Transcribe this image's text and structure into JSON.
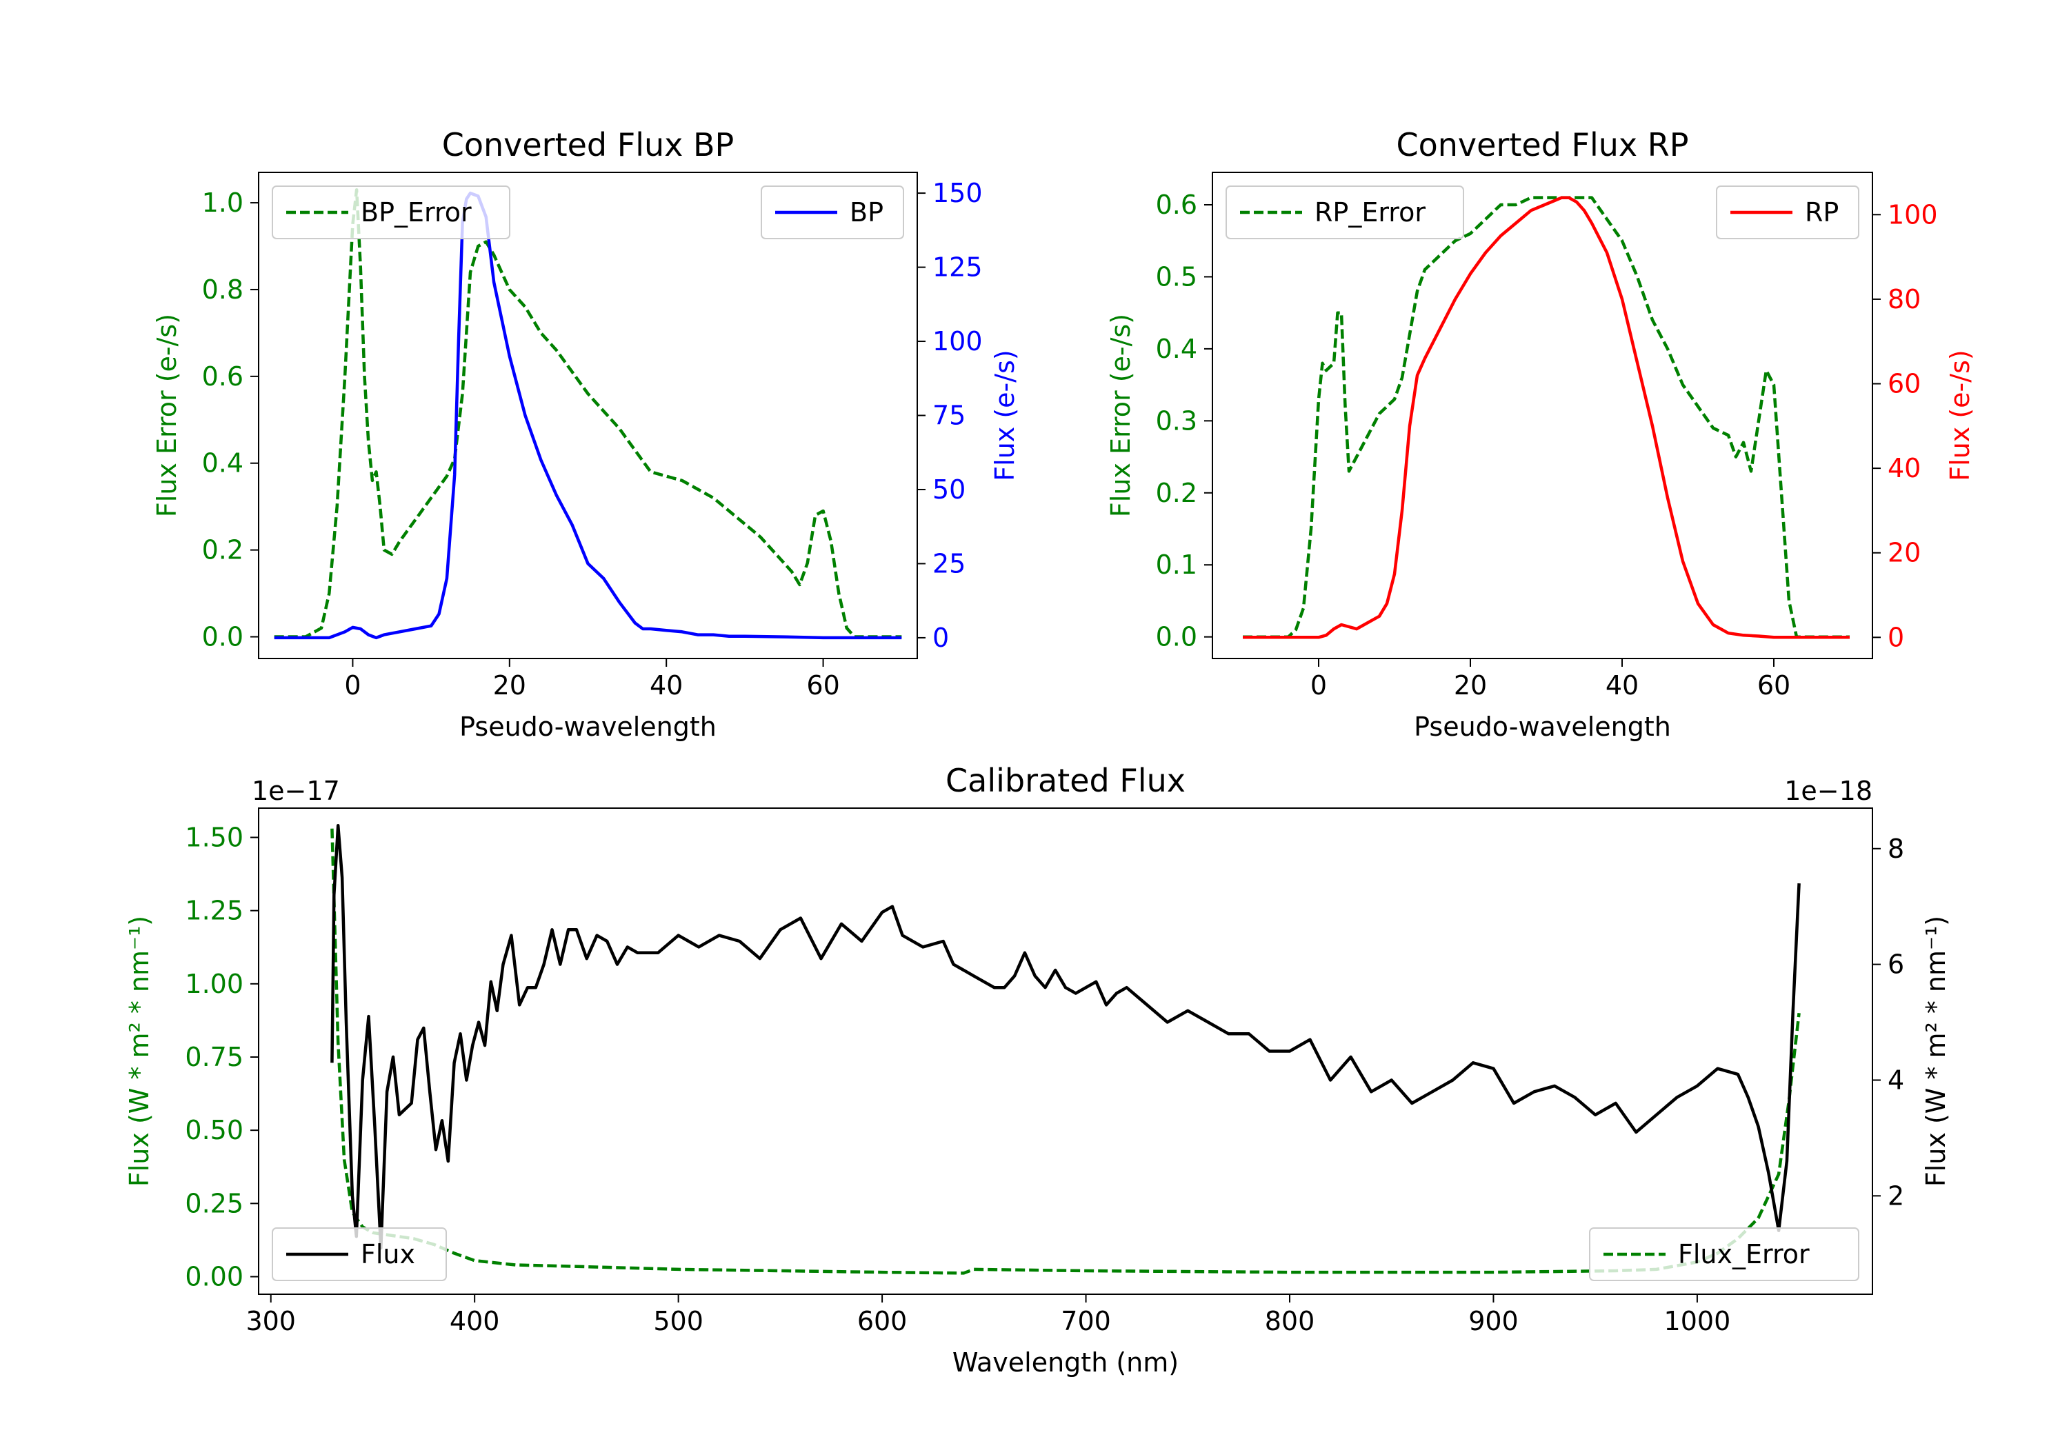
{
  "chart_data": [
    {
      "id": "bp",
      "type": "line",
      "title": "Converted Flux BP",
      "xlabel": "Pseudo-wavelength",
      "ylabel_left": "Flux Error (e-/s)",
      "ylabel_right": "Flux (e-/s)",
      "xlim": [
        -12,
        72
      ],
      "ylim_left": [
        -0.05,
        1.07
      ],
      "ylim_right": [
        -7,
        157
      ],
      "xticks": [
        0,
        20,
        40,
        60
      ],
      "yticks_left": [
        "0.0",
        "0.2",
        "0.4",
        "0.6",
        "0.8",
        "1.0"
      ],
      "yticks_left_values": [
        0.0,
        0.2,
        0.4,
        0.6,
        0.8,
        1.0
      ],
      "yticks_right": [
        "0",
        "25",
        "50",
        "75",
        "100",
        "125",
        "150"
      ],
      "yticks_right_values": [
        0,
        25,
        50,
        75,
        100,
        125,
        150
      ],
      "left_color": "#008000",
      "right_color": "#0000ff",
      "series": [
        {
          "name": "BP_Error",
          "axis": "left",
          "style": "dashed",
          "color": "#008000",
          "x": [
            -10,
            -6,
            -4,
            -3,
            -2,
            -1,
            0,
            0.5,
            1,
            1.5,
            2,
            2.5,
            3,
            3.5,
            4,
            5,
            6,
            8,
            10,
            12,
            13,
            14,
            15,
            16,
            17,
            18,
            19,
            20,
            22,
            24,
            26,
            28,
            30,
            32,
            34,
            36,
            38,
            40,
            42,
            44,
            46,
            48,
            50,
            52,
            54,
            56,
            57,
            58,
            59,
            60,
            61,
            62,
            63,
            64,
            65,
            68,
            70
          ],
          "y": [
            0,
            0,
            0.02,
            0.1,
            0.3,
            0.6,
            0.95,
            1.03,
            0.85,
            0.6,
            0.45,
            0.36,
            0.38,
            0.3,
            0.2,
            0.19,
            0.22,
            0.27,
            0.32,
            0.37,
            0.41,
            0.56,
            0.84,
            0.9,
            0.91,
            0.88,
            0.84,
            0.8,
            0.76,
            0.7,
            0.66,
            0.61,
            0.56,
            0.52,
            0.48,
            0.43,
            0.38,
            0.37,
            0.36,
            0.34,
            0.32,
            0.29,
            0.26,
            0.23,
            0.19,
            0.15,
            0.12,
            0.17,
            0.28,
            0.29,
            0.22,
            0.1,
            0.02,
            0,
            0,
            0,
            0
          ]
        },
        {
          "name": "BP",
          "axis": "right",
          "style": "solid",
          "color": "#0000ff",
          "x": [
            -10,
            -6,
            -3,
            -1,
            0,
            1,
            2,
            3,
            4,
            6,
            8,
            10,
            11,
            12,
            13,
            13.5,
            14,
            14.5,
            15,
            16,
            17,
            18,
            20,
            22,
            24,
            26,
            28,
            30,
            32,
            34,
            36,
            37,
            38,
            40,
            42,
            44,
            46,
            48,
            50,
            55,
            60,
            65,
            70
          ],
          "y": [
            0,
            0,
            0,
            2,
            3.5,
            3,
            1,
            0,
            1,
            2,
            3,
            4,
            8,
            20,
            55,
            100,
            140,
            148,
            150,
            149,
            142,
            120,
            95,
            75,
            60,
            48,
            38,
            25,
            20,
            12,
            5,
            3,
            3,
            2.5,
            2,
            1,
            1,
            0.5,
            0.5,
            0.3,
            0,
            0,
            0
          ]
        }
      ],
      "legend": [
        {
          "label": "BP_Error",
          "style": "dashed",
          "color": "#008000",
          "position": "upper-left"
        },
        {
          "label": "BP",
          "style": "solid",
          "color": "#0000ff",
          "position": "upper-right"
        }
      ]
    },
    {
      "id": "rp",
      "type": "line",
      "title": "Converted Flux RP",
      "xlabel": "Pseudo-wavelength",
      "ylabel_left": "Flux Error (e-/s)",
      "ylabel_right": "Flux (e-/s)",
      "xlim": [
        -14,
        73
      ],
      "ylim_left": [
        -0.03,
        0.645
      ],
      "ylim_right": [
        -5,
        110
      ],
      "xticks": [
        0,
        20,
        40,
        60
      ],
      "yticks_left": [
        "0.0",
        "0.1",
        "0.2",
        "0.3",
        "0.4",
        "0.5",
        "0.6"
      ],
      "yticks_left_values": [
        0.0,
        0.1,
        0.2,
        0.3,
        0.4,
        0.5,
        0.6
      ],
      "yticks_right": [
        "0",
        "20",
        "40",
        "60",
        "80",
        "100"
      ],
      "yticks_right_values": [
        0,
        20,
        40,
        60,
        80,
        100
      ],
      "left_color": "#008000",
      "right_color": "#ff0000",
      "series": [
        {
          "name": "RP_Error",
          "axis": "left",
          "style": "dashed",
          "color": "#008000",
          "x": [
            -10,
            -6,
            -4,
            -3,
            -2,
            -1,
            0,
            0.5,
            1,
            2,
            2.5,
            3,
            3.5,
            4,
            5,
            6,
            8,
            10,
            11,
            12,
            13,
            14,
            16,
            18,
            20,
            22,
            24,
            26,
            28,
            30,
            32,
            34,
            36,
            38,
            40,
            42,
            44,
            46,
            48,
            50,
            52,
            54,
            55,
            56,
            57,
            58,
            59,
            60,
            61,
            62,
            63,
            65,
            70
          ],
          "y": [
            0,
            0,
            0,
            0.01,
            0.04,
            0.15,
            0.33,
            0.38,
            0.37,
            0.38,
            0.45,
            0.45,
            0.32,
            0.23,
            0.25,
            0.27,
            0.31,
            0.33,
            0.36,
            0.42,
            0.48,
            0.51,
            0.53,
            0.55,
            0.56,
            0.58,
            0.6,
            0.6,
            0.61,
            0.61,
            0.61,
            0.61,
            0.61,
            0.58,
            0.55,
            0.5,
            0.44,
            0.4,
            0.35,
            0.32,
            0.29,
            0.28,
            0.25,
            0.27,
            0.23,
            0.3,
            0.37,
            0.35,
            0.2,
            0.05,
            0,
            0,
            0
          ]
        },
        {
          "name": "RP",
          "axis": "right",
          "style": "solid",
          "color": "#ff0000",
          "x": [
            -10,
            -6,
            -4,
            -2,
            0,
            1,
            2,
            3,
            4,
            5,
            6,
            8,
            9,
            10,
            11,
            12,
            13,
            14,
            16,
            18,
            20,
            22,
            24,
            26,
            28,
            30,
            32,
            33,
            34,
            35,
            36,
            38,
            40,
            42,
            44,
            46,
            48,
            50,
            52,
            54,
            56,
            58,
            60,
            65,
            70
          ],
          "y": [
            0,
            0,
            0,
            0,
            0,
            0.5,
            2,
            3,
            2.5,
            2,
            3,
            5,
            8,
            15,
            30,
            50,
            62,
            66,
            73,
            80,
            86,
            91,
            95,
            98,
            101,
            102.5,
            104,
            104,
            103,
            101,
            98,
            91,
            80,
            65,
            50,
            33,
            18,
            8,
            3,
            1,
            0.5,
            0.3,
            0,
            0,
            0
          ]
        }
      ],
      "legend": [
        {
          "label": "RP_Error",
          "style": "dashed",
          "color": "#008000",
          "position": "upper-left"
        },
        {
          "label": "RP",
          "style": "solid",
          "color": "#ff0000",
          "position": "upper-right"
        }
      ]
    },
    {
      "id": "cal",
      "type": "line",
      "title": "Calibrated Flux",
      "xlabel": "Wavelength (nm)",
      "ylabel_left": "Flux (W * m² * nm⁻¹)",
      "ylabel_right": "Flux (W * m² * nm⁻¹)",
      "offset_left": "1e−17",
      "offset_right": "1e−18",
      "xlim": [
        294,
        1086
      ],
      "ylim_left": [
        -0.06,
        1.6
      ],
      "ylim_right": [
        0.3,
        8.7
      ],
      "xticks": [
        300,
        400,
        500,
        600,
        700,
        800,
        900,
        1000
      ],
      "yticks_left": [
        "0.00",
        "0.25",
        "0.50",
        "0.75",
        "1.00",
        "1.25",
        "1.50"
      ],
      "yticks_left_values": [
        0.0,
        0.25,
        0.5,
        0.75,
        1.0,
        1.25,
        1.5
      ],
      "yticks_right": [
        "2",
        "4",
        "6",
        "8"
      ],
      "yticks_right_values": [
        2,
        4,
        6,
        8
      ],
      "left_color": "#008000",
      "right_color": "#000000",
      "series": [
        {
          "name": "Flux_Error",
          "axis": "left",
          "style": "dashed",
          "color": "#008000",
          "x": [
            330,
            333,
            336,
            340,
            345,
            350,
            360,
            370,
            380,
            390,
            400,
            420,
            450,
            500,
            550,
            600,
            640,
            645,
            700,
            800,
            900,
            960,
            980,
            1000,
            1010,
            1020,
            1030,
            1040,
            1045,
            1050
          ],
          "y": [
            1.53,
            0.8,
            0.4,
            0.22,
            0.17,
            0.15,
            0.14,
            0.13,
            0.11,
            0.08,
            0.055,
            0.04,
            0.035,
            0.025,
            0.02,
            0.015,
            0.012,
            0.025,
            0.02,
            0.015,
            0.015,
            0.02,
            0.025,
            0.05,
            0.08,
            0.13,
            0.2,
            0.35,
            0.6,
            0.9
          ]
        },
        {
          "name": "Flux",
          "axis": "right",
          "style": "solid",
          "color": "#000000",
          "x": [
            330,
            331,
            333,
            335,
            337,
            340,
            342,
            345,
            348,
            351,
            354,
            357,
            360,
            363,
            366,
            369,
            372,
            375,
            378,
            381,
            384,
            387,
            390,
            393,
            396,
            399,
            402,
            405,
            408,
            411,
            414,
            418,
            422,
            426,
            430,
            434,
            438,
            442,
            446,
            450,
            455,
            460,
            465,
            470,
            475,
            480,
            490,
            500,
            505,
            510,
            520,
            530,
            540,
            550,
            560,
            570,
            580,
            590,
            600,
            605,
            610,
            620,
            630,
            635,
            640,
            645,
            650,
            655,
            660,
            665,
            670,
            675,
            680,
            685,
            690,
            695,
            700,
            705,
            710,
            715,
            720,
            730,
            740,
            750,
            760,
            770,
            780,
            790,
            800,
            810,
            820,
            830,
            840,
            850,
            860,
            870,
            880,
            890,
            900,
            910,
            920,
            930,
            940,
            950,
            960,
            970,
            980,
            990,
            1000,
            1010,
            1020,
            1025,
            1030,
            1035,
            1040,
            1044,
            1047,
            1050
          ],
          "y": [
            4.3,
            7.2,
            8.4,
            7.5,
            5,
            2,
            1.3,
            4,
            5.1,
            3.2,
            1.1,
            3.8,
            4.4,
            3.4,
            3.5,
            3.6,
            4.7,
            4.9,
            3.8,
            2.8,
            3.3,
            2.6,
            4.3,
            4.8,
            4,
            4.6,
            5,
            4.6,
            5.7,
            5.2,
            6,
            6.5,
            5.3,
            5.6,
            5.6,
            6,
            6.6,
            6,
            6.6,
            6.6,
            6.1,
            6.5,
            6.4,
            6,
            6.3,
            6.2,
            6.2,
            6.5,
            6.4,
            6.3,
            6.5,
            6.4,
            6.1,
            6.6,
            6.8,
            6.1,
            6.7,
            6.4,
            6.9,
            7,
            6.5,
            6.3,
            6.4,
            6.0,
            5.9,
            5.8,
            5.7,
            5.6,
            5.6,
            5.8,
            6.2,
            5.8,
            5.6,
            5.9,
            5.6,
            5.5,
            5.6,
            5.7,
            5.3,
            5.5,
            5.6,
            5.3,
            5.0,
            5.2,
            5.0,
            4.8,
            4.8,
            4.5,
            4.5,
            4.7,
            4.0,
            4.4,
            3.8,
            4.0,
            3.6,
            3.8,
            4.0,
            4.3,
            4.2,
            3.6,
            3.8,
            3.9,
            3.7,
            3.4,
            3.6,
            3.1,
            3.4,
            3.7,
            3.9,
            4.2,
            4.1,
            3.7,
            3.2,
            2.4,
            1.4,
            2.6,
            5.2,
            7.4
          ]
        }
      ],
      "legend": [
        {
          "label": "Flux",
          "style": "solid",
          "color": "#000000",
          "position": "lower-left"
        },
        {
          "label": "Flux_Error",
          "style": "dashed",
          "color": "#008000",
          "position": "lower-right"
        }
      ]
    }
  ]
}
